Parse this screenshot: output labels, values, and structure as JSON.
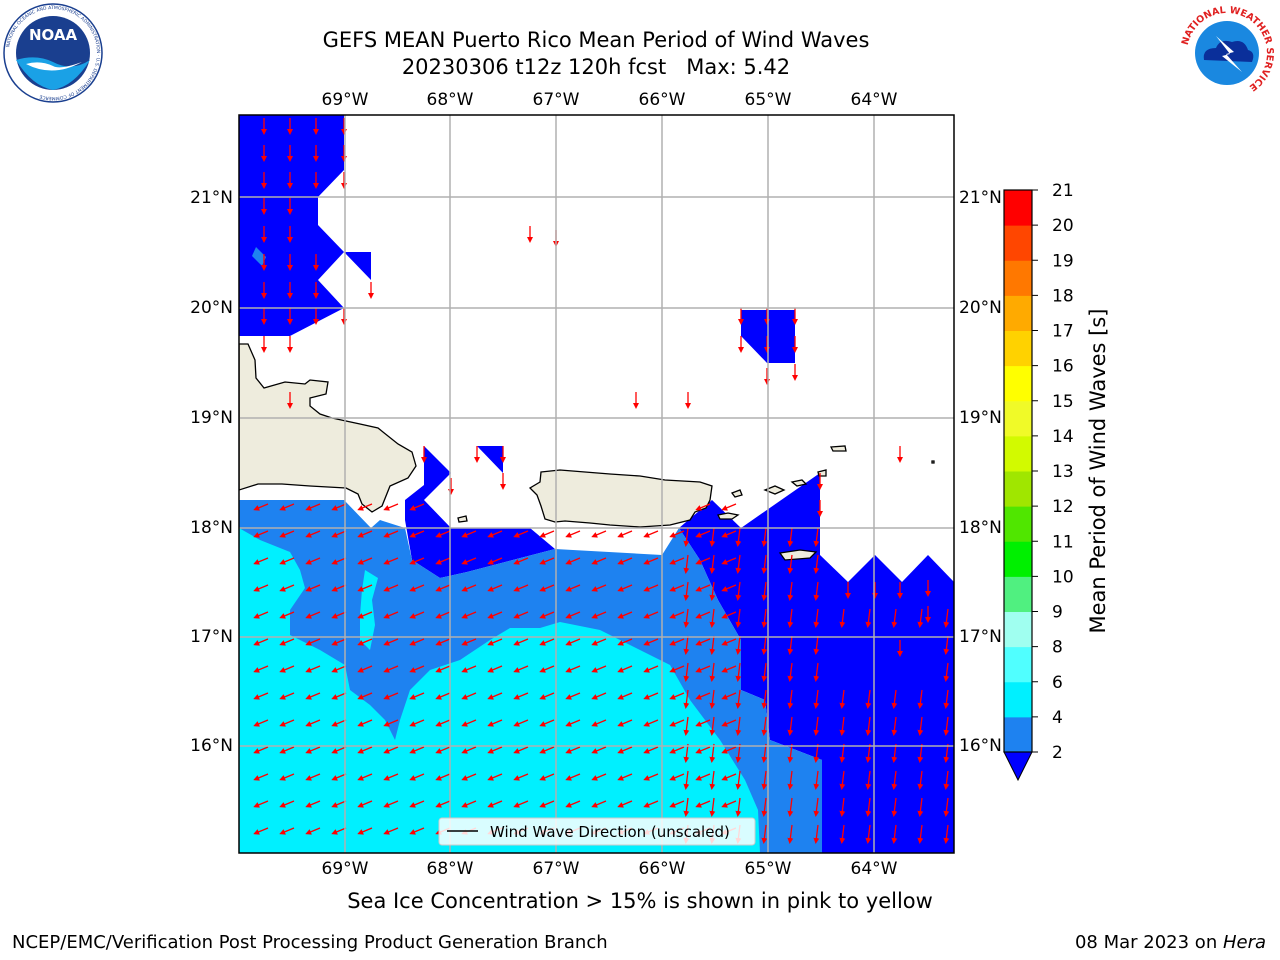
{
  "header": {
    "title_line1": "GEFS MEAN Puerto Rico Mean Period of Wind Waves",
    "title_line2": "20230306 t12z 120h fcst   Max: 5.42",
    "noaa_logo_text": "NOAA",
    "noaa_ring_text": "NATIONAL OCEANIC AND ATMOSPHERIC ADMINISTRATION · U.S. DEPARTMENT OF COMMERCE",
    "nws_ring_text": "NATIONAL WEATHER SERVICE"
  },
  "map": {
    "lon_labels": [
      "69°W",
      "68°W",
      "67°W",
      "66°W",
      "65°W",
      "64°W"
    ],
    "lat_labels": [
      "21°N",
      "20°N",
      "19°N",
      "18°N",
      "17°N",
      "16°N"
    ],
    "legend_label": "Wind Wave Direction (unscaled)",
    "colors": {
      "land": "#eeecdd",
      "period_lt2": "#0000ff",
      "period_2_4": "#1e82f0",
      "period_4_6": "#00f0ff",
      "arrow": "#ff0000",
      "grid": "#b0b0b0"
    }
  },
  "colorbar": {
    "label": "Mean Period of Wind Waves [s]",
    "ticks": [
      "2",
      "4",
      "6",
      "8",
      "9",
      "10",
      "11",
      "12",
      "13",
      "14",
      "15",
      "16",
      "17",
      "18",
      "19",
      "20",
      "21"
    ],
    "colors": [
      "#0000ff",
      "#1e82f0",
      "#00f0ff",
      "#50ffff",
      "#a0fff0",
      "#50f080",
      "#00f000",
      "#50e600",
      "#a0e600",
      "#d2fa00",
      "#f0fa28",
      "#ffff00",
      "#ffd200",
      "#ffaa00",
      "#ff7800",
      "#ff4600",
      "#ff0000"
    ]
  },
  "footer": {
    "caption": "Sea Ice Concentration > 15% is shown in pink to yellow",
    "left": "NCEP/EMC/Verification Post Processing Product Generation Branch",
    "right_prefix": "08 Mar 2023 on ",
    "right_host": "Hera"
  }
}
